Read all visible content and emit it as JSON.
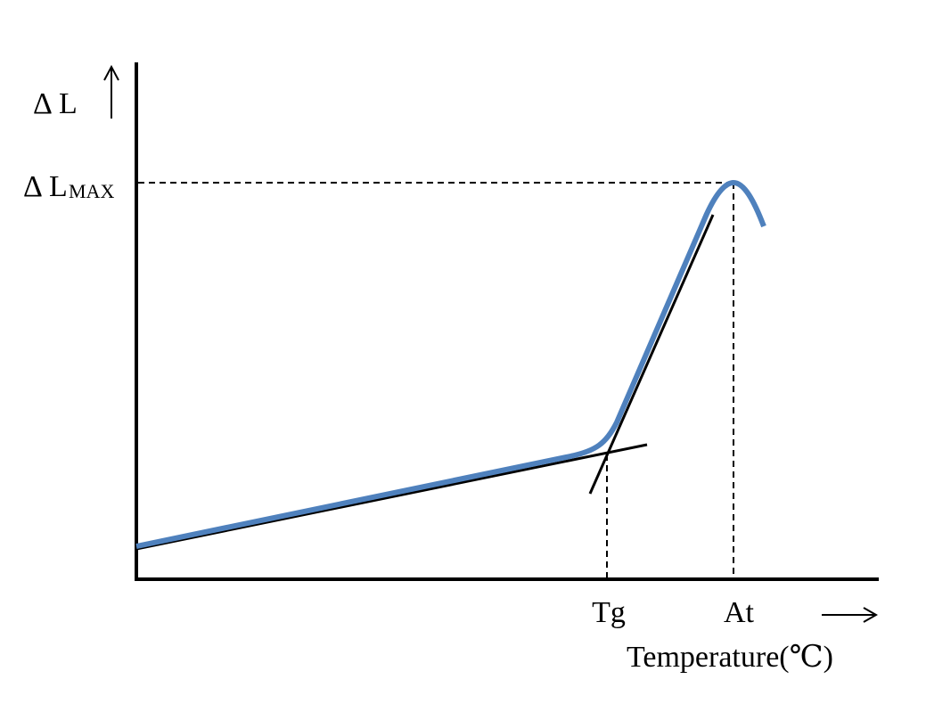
{
  "y_axis": {
    "label_symbol": "Δ",
    "label_letter": "L",
    "max_symbol": "Δ",
    "max_letter": "L",
    "max_subscript": "MAX"
  },
  "x_axis": {
    "tick_tg": "Tg",
    "tick_at": "At",
    "title": "Temperature(℃)"
  },
  "colors": {
    "curve": "#4f81bd",
    "lines": "#000000",
    "background": "#ffffff"
  }
}
